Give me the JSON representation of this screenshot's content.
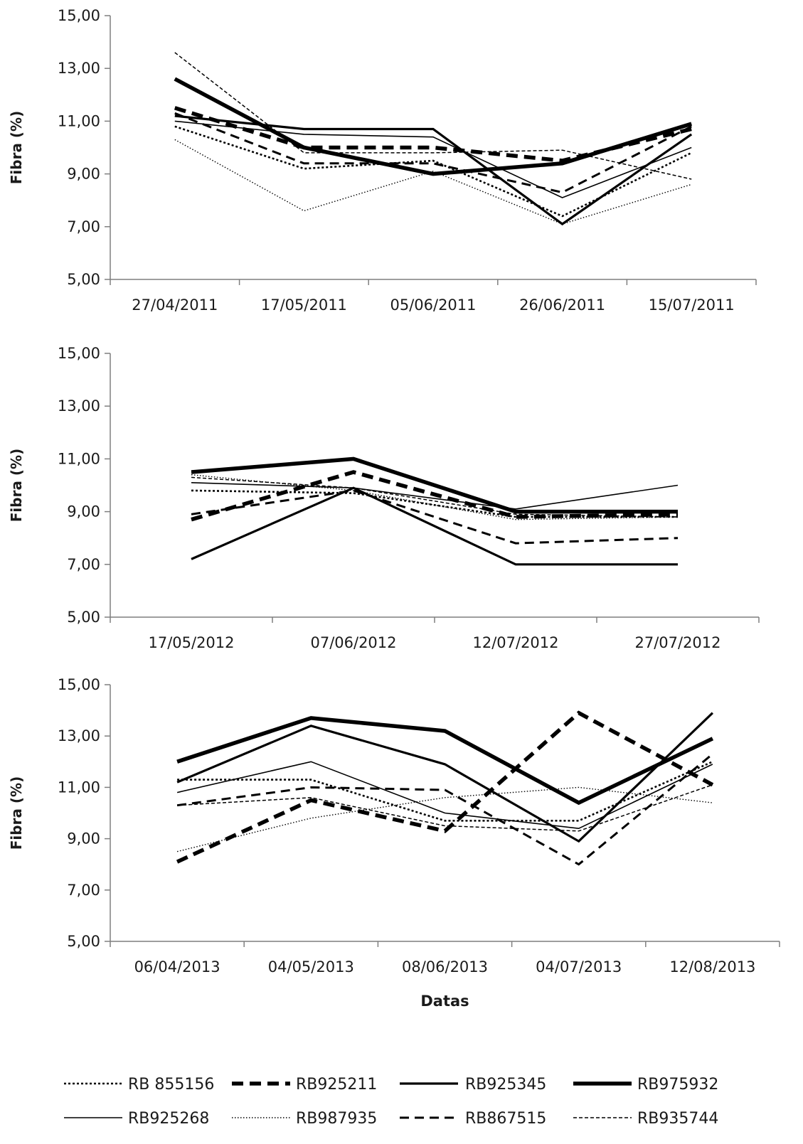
{
  "chart_data": [
    {
      "type": "line",
      "ylabel": "Fibra (%)",
      "xlabel": "",
      "ylim": [
        5,
        15
      ],
      "yticks": [
        "5,00",
        "7,00",
        "9,00",
        "11,00",
        "13,00",
        "15,00"
      ],
      "categories": [
        "27/04/2011",
        "17/05/2011",
        "05/06/2011",
        "26/06/2011",
        "15/07/2011"
      ],
      "series": [
        {
          "name": "RB 855156",
          "values": [
            10.8,
            9.2,
            9.5,
            7.4,
            9.8
          ]
        },
        {
          "name": "RB925211",
          "values": [
            11.5,
            10.0,
            10.0,
            9.5,
            10.7
          ]
        },
        {
          "name": "RB925345",
          "values": [
            11.2,
            10.7,
            10.7,
            7.1,
            10.5
          ]
        },
        {
          "name": "RB975932",
          "values": [
            12.6,
            10.0,
            9.0,
            9.4,
            10.9
          ]
        },
        {
          "name": "RB925268",
          "values": [
            11.0,
            10.5,
            10.4,
            8.1,
            10.0
          ]
        },
        {
          "name": "RB987935",
          "values": [
            10.3,
            7.6,
            9.1,
            7.1,
            8.6
          ]
        },
        {
          "name": "RB867515",
          "values": [
            11.3,
            9.4,
            9.4,
            8.3,
            10.8
          ]
        },
        {
          "name": "RB935744",
          "values": [
            13.6,
            9.8,
            9.8,
            9.9,
            8.8
          ]
        }
      ]
    },
    {
      "type": "line",
      "ylabel": "Fibra (%)",
      "xlabel": "",
      "ylim": [
        5,
        15
      ],
      "yticks": [
        "5,00",
        "7,00",
        "9,00",
        "11,00",
        "13,00",
        "15,00"
      ],
      "categories": [
        "17/05/2012",
        "07/06/2012",
        "12/07/2012",
        "27/07/2012"
      ],
      "series": [
        {
          "name": "RB 855156",
          "values": [
            9.8,
            9.7,
            8.8,
            8.8
          ]
        },
        {
          "name": "RB925211",
          "values": [
            8.7,
            10.5,
            8.8,
            8.9
          ]
        },
        {
          "name": "RB925345",
          "values": [
            7.2,
            9.9,
            7.0,
            7.0
          ]
        },
        {
          "name": "RB975932",
          "values": [
            10.5,
            11.0,
            9.0,
            9.0
          ]
        },
        {
          "name": "RB925268",
          "values": [
            10.1,
            9.9,
            9.1,
            10.0
          ]
        },
        {
          "name": "RB987935",
          "values": [
            10.4,
            9.8,
            8.7,
            8.8
          ]
        },
        {
          "name": "RB867515",
          "values": [
            8.9,
            9.8,
            7.8,
            8.0
          ]
        },
        {
          "name": "RB935744",
          "values": [
            10.3,
            9.9,
            8.9,
            8.8
          ]
        }
      ]
    },
    {
      "type": "line",
      "ylabel": "Fibra (%)",
      "xlabel": "Datas",
      "ylim": [
        5,
        15
      ],
      "yticks": [
        "5,00",
        "7,00",
        "9,00",
        "11,00",
        "13,00",
        "15,00"
      ],
      "categories": [
        "06/04/2013",
        "04/05/2013",
        "08/06/2013",
        "04/07/2013",
        "12/08/2013"
      ],
      "series": [
        {
          "name": "RB 855156",
          "values": [
            11.3,
            11.3,
            9.7,
            9.7,
            12.0
          ]
        },
        {
          "name": "RB925211",
          "values": [
            8.1,
            10.5,
            9.3,
            13.9,
            11.1
          ]
        },
        {
          "name": "RB925345",
          "values": [
            11.2,
            13.4,
            11.9,
            8.9,
            13.9
          ]
        },
        {
          "name": "RB975932",
          "values": [
            12.0,
            13.7,
            13.2,
            10.4,
            12.9
          ]
        },
        {
          "name": "RB925268",
          "values": [
            10.8,
            12.0,
            10.0,
            9.4,
            11.9
          ]
        },
        {
          "name": "RB987935",
          "values": [
            8.5,
            9.8,
            10.6,
            11.0,
            10.4
          ]
        },
        {
          "name": "RB867515",
          "values": [
            10.3,
            11.0,
            10.9,
            8.0,
            12.3
          ]
        },
        {
          "name": "RB935744",
          "values": [
            10.3,
            10.6,
            9.5,
            9.3,
            11.1
          ]
        }
      ]
    }
  ],
  "legend": {
    "placement": "bottom",
    "items": [
      {
        "name": "RB 855156",
        "style": "dotted"
      },
      {
        "name": "RB925211",
        "style": "thick-dash"
      },
      {
        "name": "RB925345",
        "style": "solid"
      },
      {
        "name": "RB975932",
        "style": "thick-solid"
      },
      {
        "name": "RB925268",
        "style": "thin-solid"
      },
      {
        "name": "RB987935",
        "style": "fine-dotted"
      },
      {
        "name": "RB867515",
        "style": "dash"
      },
      {
        "name": "RB935744",
        "style": "fine-dash"
      }
    ]
  }
}
